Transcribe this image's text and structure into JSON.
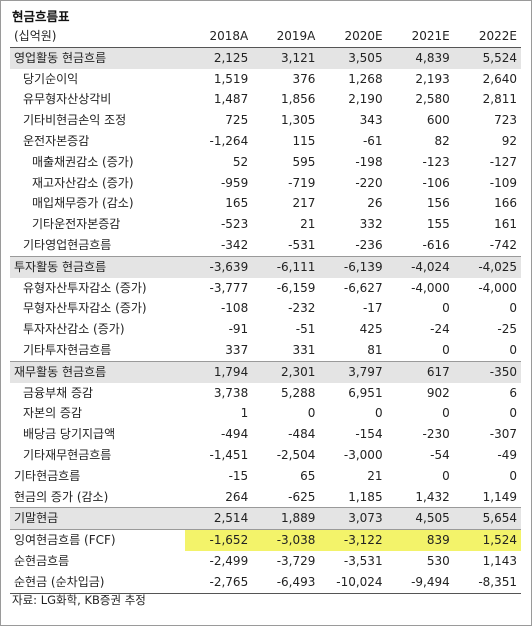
{
  "title": "현금흐름표",
  "unit_label": "(십억원)",
  "columns": [
    "2018A",
    "2019A",
    "2020E",
    "2021E",
    "2022E"
  ],
  "rows": [
    {
      "label": "영업활동 현금흐름",
      "indent": 0,
      "shaded": true,
      "values": [
        "2,125",
        "3,121",
        "3,505",
        "4,839",
        "5,524"
      ]
    },
    {
      "label": "당기순이익",
      "indent": 1,
      "values": [
        "1,519",
        "376",
        "1,268",
        "2,193",
        "2,640"
      ]
    },
    {
      "label": "유무형자산상각비",
      "indent": 1,
      "values": [
        "1,487",
        "1,856",
        "2,190",
        "2,580",
        "2,811"
      ]
    },
    {
      "label": "기타비현금손익 조정",
      "indent": 1,
      "values": [
        "725",
        "1,305",
        "343",
        "600",
        "723"
      ]
    },
    {
      "label": "운전자본증감",
      "indent": 1,
      "values": [
        "-1,264",
        "115",
        "-61",
        "82",
        "92"
      ]
    },
    {
      "label": "매출채권감소 (증가)",
      "indent": 2,
      "values": [
        "52",
        "595",
        "-198",
        "-123",
        "-127"
      ]
    },
    {
      "label": "재고자산감소 (증가)",
      "indent": 2,
      "values": [
        "-959",
        "-719",
        "-220",
        "-106",
        "-109"
      ]
    },
    {
      "label": "매입채무증가 (감소)",
      "indent": 2,
      "values": [
        "165",
        "217",
        "26",
        "156",
        "166"
      ]
    },
    {
      "label": "기타운전자본증감",
      "indent": 2,
      "values": [
        "-523",
        "21",
        "332",
        "155",
        "161"
      ]
    },
    {
      "label": "기타영업현금흐름",
      "indent": 1,
      "values": [
        "-342",
        "-531",
        "-236",
        "-616",
        "-742"
      ]
    },
    {
      "label": "투자활동 현금흐름",
      "indent": 0,
      "shaded": true,
      "sep": true,
      "values": [
        "-3,639",
        "-6,111",
        "-6,139",
        "-4,024",
        "-4,025"
      ]
    },
    {
      "label": "유형자산투자감소 (증가)",
      "indent": 1,
      "values": [
        "-3,777",
        "-6,159",
        "-6,627",
        "-4,000",
        "-4,000"
      ]
    },
    {
      "label": "무형자산투자감소 (증가)",
      "indent": 1,
      "values": [
        "-108",
        "-232",
        "-17",
        "0",
        "0"
      ]
    },
    {
      "label": "투자자산감소 (증가)",
      "indent": 1,
      "values": [
        "-91",
        "-51",
        "425",
        "-24",
        "-25"
      ]
    },
    {
      "label": "기타투자현금흐름",
      "indent": 1,
      "values": [
        "337",
        "331",
        "81",
        "0",
        "0"
      ]
    },
    {
      "label": "재무활동 현금흐름",
      "indent": 0,
      "shaded": true,
      "sep": true,
      "values": [
        "1,794",
        "2,301",
        "3,797",
        "617",
        "-350"
      ]
    },
    {
      "label": "금융부채 증감",
      "indent": 1,
      "values": [
        "3,738",
        "5,288",
        "6,951",
        "902",
        "6"
      ]
    },
    {
      "label": "자본의 증감",
      "indent": 1,
      "values": [
        "1",
        "0",
        "0",
        "0",
        "0"
      ]
    },
    {
      "label": "배당금 당기지급액",
      "indent": 1,
      "values": [
        "-494",
        "-484",
        "-154",
        "-230",
        "-307"
      ]
    },
    {
      "label": "기타재무현금흐름",
      "indent": 1,
      "values": [
        "-1,451",
        "-2,504",
        "-3,000",
        "-54",
        "-49"
      ]
    },
    {
      "label": "기타현금흐름",
      "indent": 0,
      "values": [
        "-15",
        "65",
        "21",
        "0",
        "0"
      ]
    },
    {
      "label": "현금의 증가 (감소)",
      "indent": 0,
      "values": [
        "264",
        "-625",
        "1,185",
        "1,432",
        "1,149"
      ]
    },
    {
      "label": "기말현금",
      "indent": 0,
      "shaded": true,
      "sep": true,
      "values": [
        "2,514",
        "1,889",
        "3,073",
        "4,505",
        "5,654"
      ]
    },
    {
      "label": "잉여현금흐름 (FCF)",
      "indent": 0,
      "highlight": true,
      "sep": true,
      "values": [
        "-1,652",
        "-3,038",
        "-3,122",
        "839",
        "1,524"
      ]
    },
    {
      "label": "순현금흐름",
      "indent": 0,
      "values": [
        "-2,499",
        "-3,729",
        "-3,531",
        "530",
        "1,143"
      ]
    },
    {
      "label": "순현금 (순차입금)",
      "indent": 0,
      "values": [
        "-2,765",
        "-6,493",
        "-10,024",
        "-9,494",
        "-8,351"
      ]
    }
  ],
  "source": "자료: LG화학, KB증권 추정",
  "colors": {
    "shade": "#e4e4e4",
    "highlight": "#f3f36a"
  }
}
